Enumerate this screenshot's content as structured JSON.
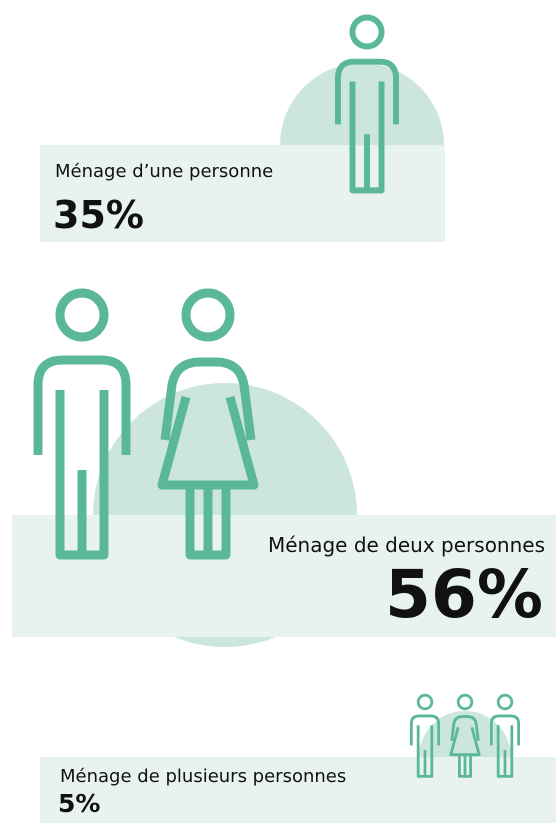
{
  "items": [
    {
      "label": "Ménage d’une personne",
      "value": "35%"
    },
    {
      "label": "Ménage de deux personnes",
      "value": "56%"
    },
    {
      "label": "Ménage de plusieurs personnes",
      "value": "5%"
    }
  ]
}
